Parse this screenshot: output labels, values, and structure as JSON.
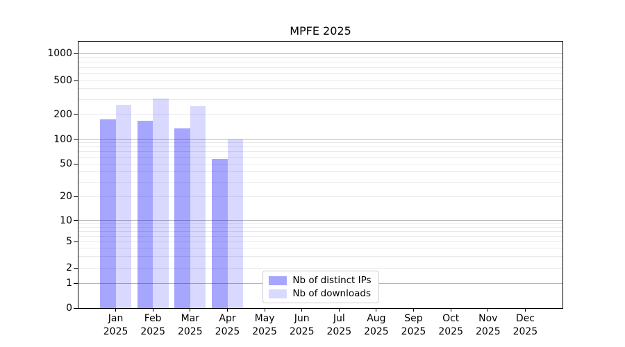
{
  "title": "MPFE 2025",
  "y_axis": {
    "ticks": [
      0,
      1,
      2,
      5,
      10,
      20,
      50,
      100,
      200,
      500,
      1000
    ]
  },
  "x_axis": {
    "months": [
      "Jan",
      "Feb",
      "Mar",
      "Apr",
      "May",
      "Jun",
      "Jul",
      "Aug",
      "Sep",
      "Oct",
      "Nov",
      "Dec"
    ],
    "year": "2025"
  },
  "legend": {
    "items": [
      {
        "label": "Nb of distinct IPs"
      },
      {
        "label": "Nb of downloads"
      }
    ]
  },
  "chart_data": {
    "type": "bar",
    "title": "MPFE 2025",
    "categories": [
      "Jan 2025",
      "Feb 2025",
      "Mar 2025",
      "Apr 2025",
      "May 2025",
      "Jun 2025",
      "Jul 2025",
      "Aug 2025",
      "Sep 2025",
      "Oct 2025",
      "Nov 2025",
      "Dec 2025"
    ],
    "series": [
      {
        "name": "Nb of distinct IPs",
        "color": "rgba(0,0,255,0.35)",
        "values": [
          172,
          168,
          135,
          57,
          null,
          null,
          null,
          null,
          null,
          null,
          null,
          null
        ]
      },
      {
        "name": "Nb of downloads",
        "color": "rgba(0,0,255,0.15)",
        "values": [
          260,
          305,
          248,
          100,
          null,
          null,
          null,
          null,
          null,
          null,
          null,
          null
        ]
      }
    ],
    "yscale": "symlog",
    "y_ticks": [
      0,
      1,
      2,
      5,
      10,
      20,
      50,
      100,
      200,
      500,
      1000
    ],
    "ylim": [
      0,
      1150
    ],
    "grid": "horizontal",
    "legend_position": "lower center"
  },
  "colors": {
    "bar_ips": "rgba(0,0,255,0.35)",
    "bar_downloads": "rgba(0,0,255,0.15)",
    "major_grid": "#b5b5b5",
    "minor_grid": "#e9e9e9",
    "axis": "#000000",
    "legend_border": "#cccccc",
    "background": "#ffffff"
  }
}
